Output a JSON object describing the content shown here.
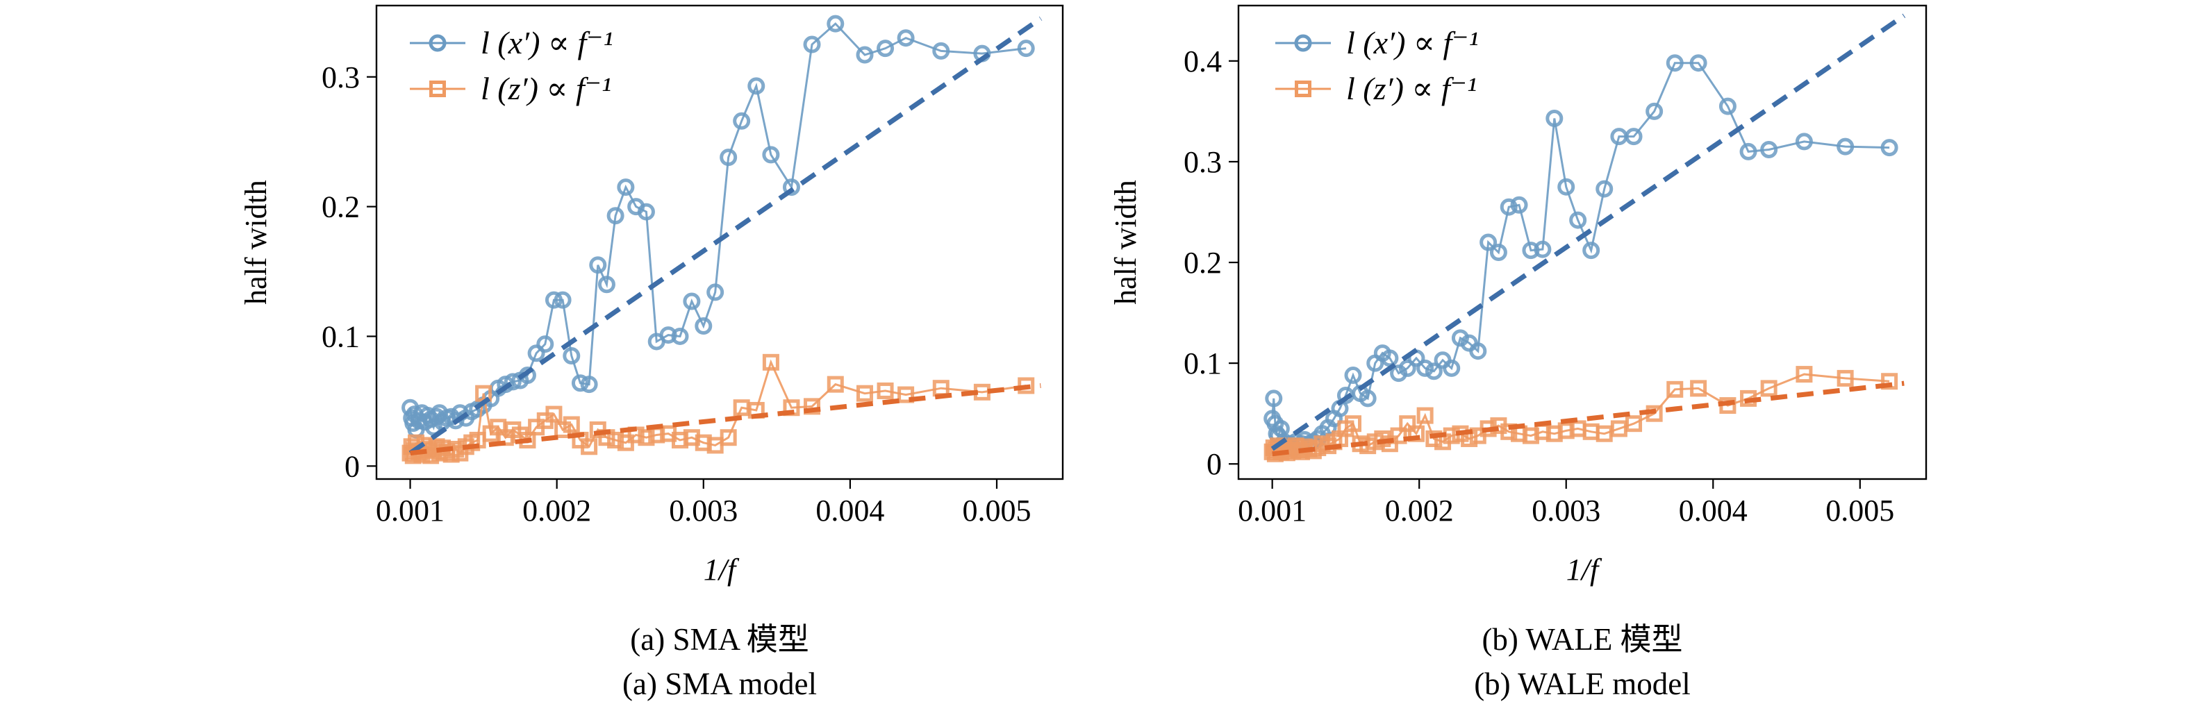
{
  "chart_data": [
    {
      "type": "line",
      "panel": "a",
      "caption_cn": "(a) SMA 模型",
      "caption_en": "(a) SMA model",
      "xlabel": "1/f",
      "ylabel": "half width",
      "xlim": [
        0.00077,
        0.00545
      ],
      "ylim": [
        -0.01,
        0.355
      ],
      "xticks": [
        0.001,
        0.002,
        0.003,
        0.004,
        0.005
      ],
      "xtick_labels": [
        "0.001",
        "0.002",
        "0.003",
        "0.004",
        "0.005"
      ],
      "yticks": [
        0,
        0.1,
        0.2,
        0.3
      ],
      "ytick_labels": [
        "0",
        "0.1",
        "0.2",
        "0.3"
      ],
      "legend_position": "top-left",
      "series": [
        {
          "name": "l (x′) ∝ f⁻¹",
          "marker": "circle",
          "color": "#6b9bc3",
          "fit_color": "#3e6ea8",
          "x": [
            0.001,
            0.00101,
            0.00102,
            0.00103,
            0.00104,
            0.00106,
            0.00108,
            0.0011,
            0.00112,
            0.00114,
            0.00116,
            0.00118,
            0.0012,
            0.00122,
            0.00125,
            0.00128,
            0.00131,
            0.00134,
            0.00138,
            0.00142,
            0.00146,
            0.0015,
            0.00155,
            0.0016,
            0.00165,
            0.0017,
            0.00175,
            0.0018,
            0.00186,
            0.00192,
            0.00198,
            0.00204,
            0.0021,
            0.00216,
            0.00222,
            0.00228,
            0.00234,
            0.0024,
            0.00247,
            0.00254,
            0.00261,
            0.00268,
            0.00276,
            0.00284,
            0.00292,
            0.003,
            0.00308,
            0.00317,
            0.00326,
            0.00336,
            0.00346,
            0.0036,
            0.00374,
            0.0039,
            0.0041,
            0.00424,
            0.00438,
            0.00462,
            0.0049,
            0.0052
          ],
          "y": [
            0.045,
            0.037,
            0.033,
            0.04,
            0.028,
            0.035,
            0.041,
            0.034,
            0.039,
            0.036,
            0.03,
            0.038,
            0.041,
            0.034,
            0.037,
            0.038,
            0.035,
            0.041,
            0.037,
            0.042,
            0.044,
            0.047,
            0.052,
            0.06,
            0.063,
            0.065,
            0.066,
            0.07,
            0.087,
            0.094,
            0.128,
            0.128,
            0.085,
            0.064,
            0.063,
            0.155,
            0.14,
            0.193,
            0.215,
            0.2,
            0.196,
            0.096,
            0.101,
            0.1,
            0.127,
            0.108,
            0.134,
            0.238,
            0.266,
            0.293,
            0.24,
            0.215,
            0.325,
            0.341,
            0.317,
            0.322,
            0.33,
            0.32,
            0.318,
            0.322
          ],
          "fit": {
            "x": [
              0.001,
              0.0053
            ],
            "y": [
              0.01,
              0.345
            ]
          }
        },
        {
          "name": "l (z′) ∝ f⁻¹",
          "marker": "square",
          "color": "#ef9a62",
          "fit_color": "#e06a2e",
          "x": [
            0.001,
            0.00101,
            0.00102,
            0.00103,
            0.00104,
            0.00106,
            0.00108,
            0.0011,
            0.00112,
            0.00114,
            0.00116,
            0.00118,
            0.0012,
            0.00122,
            0.00125,
            0.00128,
            0.00131,
            0.00134,
            0.00138,
            0.00142,
            0.00146,
            0.0015,
            0.00155,
            0.0016,
            0.00165,
            0.0017,
            0.00175,
            0.0018,
            0.00186,
            0.00192,
            0.00198,
            0.00204,
            0.0021,
            0.00216,
            0.00222,
            0.00228,
            0.00234,
            0.0024,
            0.00247,
            0.00254,
            0.00261,
            0.00268,
            0.00276,
            0.00284,
            0.00292,
            0.003,
            0.00308,
            0.00317,
            0.00326,
            0.00336,
            0.00346,
            0.0036,
            0.00374,
            0.0039,
            0.0041,
            0.00424,
            0.00438,
            0.00462,
            0.0049,
            0.0052
          ],
          "y": [
            0.01,
            0.015,
            0.008,
            0.012,
            0.018,
            0.011,
            0.009,
            0.016,
            0.013,
            0.008,
            0.012,
            0.015,
            0.01,
            0.014,
            0.011,
            0.009,
            0.013,
            0.01,
            0.015,
            0.018,
            0.02,
            0.056,
            0.025,
            0.03,
            0.022,
            0.028,
            0.024,
            0.02,
            0.03,
            0.035,
            0.04,
            0.028,
            0.032,
            0.02,
            0.015,
            0.028,
            0.022,
            0.02,
            0.018,
            0.024,
            0.022,
            0.024,
            0.025,
            0.02,
            0.022,
            0.018,
            0.016,
            0.022,
            0.045,
            0.043,
            0.08,
            0.045,
            0.046,
            0.063,
            0.056,
            0.058,
            0.055,
            0.06,
            0.057,
            0.062
          ],
          "fit": {
            "x": [
              0.001,
              0.0053
            ],
            "y": [
              0.01,
              0.062
            ]
          }
        }
      ]
    },
    {
      "type": "line",
      "panel": "b",
      "caption_cn": "(b) WALE 模型",
      "caption_en": "(b) WALE model",
      "xlabel": "1/f",
      "ylabel": "half width",
      "xlim": [
        0.00077,
        0.00545
      ],
      "ylim": [
        -0.015,
        0.455
      ],
      "xticks": [
        0.001,
        0.002,
        0.003,
        0.004,
        0.005
      ],
      "xtick_labels": [
        "0.001",
        "0.002",
        "0.003",
        "0.004",
        "0.005"
      ],
      "yticks": [
        0,
        0.1,
        0.2,
        0.3,
        0.4
      ],
      "ytick_labels": [
        "0",
        "0.1",
        "0.2",
        "0.3",
        "0.4"
      ],
      "legend_position": "top-left",
      "series": [
        {
          "name": "l (x′) ∝ f⁻¹",
          "marker": "circle",
          "color": "#6b9bc3",
          "fit_color": "#3e6ea8",
          "x": [
            0.001,
            0.00101,
            0.00102,
            0.00103,
            0.00104,
            0.00106,
            0.00108,
            0.0011,
            0.00112,
            0.00114,
            0.00116,
            0.00118,
            0.0012,
            0.00122,
            0.00125,
            0.00128,
            0.00131,
            0.00134,
            0.00138,
            0.00142,
            0.00146,
            0.0015,
            0.00155,
            0.0016,
            0.00165,
            0.0017,
            0.00175,
            0.0018,
            0.00186,
            0.00192,
            0.00198,
            0.00204,
            0.0021,
            0.00216,
            0.00222,
            0.00228,
            0.00234,
            0.0024,
            0.00247,
            0.00254,
            0.00261,
            0.00268,
            0.00276,
            0.00284,
            0.00292,
            0.003,
            0.00308,
            0.00317,
            0.00326,
            0.00336,
            0.00346,
            0.0036,
            0.00374,
            0.0039,
            0.0041,
            0.00424,
            0.00438,
            0.00462,
            0.0049,
            0.0052
          ],
          "y": [
            0.045,
            0.065,
            0.04,
            0.03,
            0.028,
            0.035,
            0.022,
            0.018,
            0.02,
            0.015,
            0.022,
            0.018,
            0.02,
            0.024,
            0.02,
            0.022,
            0.025,
            0.03,
            0.036,
            0.045,
            0.055,
            0.068,
            0.088,
            0.07,
            0.065,
            0.1,
            0.11,
            0.105,
            0.09,
            0.095,
            0.105,
            0.095,
            0.092,
            0.103,
            0.095,
            0.125,
            0.12,
            0.112,
            0.22,
            0.21,
            0.255,
            0.257,
            0.212,
            0.213,
            0.343,
            0.275,
            0.242,
            0.212,
            0.273,
            0.325,
            0.325,
            0.35,
            0.398,
            0.398,
            0.355,
            0.31,
            0.312,
            0.32,
            0.315,
            0.314
          ],
          "fit": {
            "x": [
              0.001,
              0.0053
            ],
            "y": [
              0.015,
              0.445
            ]
          }
        },
        {
          "name": "l (z′) ∝ f⁻¹",
          "marker": "square",
          "color": "#ef9a62",
          "fit_color": "#e06a2e",
          "x": [
            0.001,
            0.00101,
            0.00102,
            0.00103,
            0.00104,
            0.00106,
            0.00108,
            0.0011,
            0.00112,
            0.00114,
            0.00116,
            0.00118,
            0.0012,
            0.00122,
            0.00125,
            0.00128,
            0.00131,
            0.00134,
            0.00138,
            0.00142,
            0.00146,
            0.0015,
            0.00155,
            0.0016,
            0.00165,
            0.0017,
            0.00175,
            0.0018,
            0.00186,
            0.00192,
            0.00198,
            0.00204,
            0.0021,
            0.00216,
            0.00222,
            0.00228,
            0.00234,
            0.0024,
            0.00247,
            0.00254,
            0.00261,
            0.00268,
            0.00276,
            0.00284,
            0.00292,
            0.003,
            0.00308,
            0.00317,
            0.00326,
            0.00336,
            0.00346,
            0.0036,
            0.00374,
            0.0039,
            0.0041,
            0.00424,
            0.00438,
            0.00462,
            0.0049,
            0.0052
          ],
          "y": [
            0.012,
            0.016,
            0.01,
            0.014,
            0.018,
            0.012,
            0.015,
            0.011,
            0.016,
            0.013,
            0.018,
            0.014,
            0.012,
            0.017,
            0.015,
            0.013,
            0.016,
            0.02,
            0.018,
            0.022,
            0.025,
            0.035,
            0.04,
            0.02,
            0.018,
            0.022,
            0.025,
            0.02,
            0.028,
            0.04,
            0.03,
            0.048,
            0.025,
            0.022,
            0.028,
            0.03,
            0.025,
            0.028,
            0.035,
            0.038,
            0.032,
            0.03,
            0.028,
            0.032,
            0.03,
            0.033,
            0.035,
            0.032,
            0.03,
            0.035,
            0.04,
            0.05,
            0.074,
            0.075,
            0.058,
            0.065,
            0.075,
            0.089,
            0.085,
            0.082
          ],
          "fit": {
            "x": [
              0.001,
              0.0053
            ],
            "y": [
              0.01,
              0.08
            ]
          }
        }
      ]
    }
  ]
}
